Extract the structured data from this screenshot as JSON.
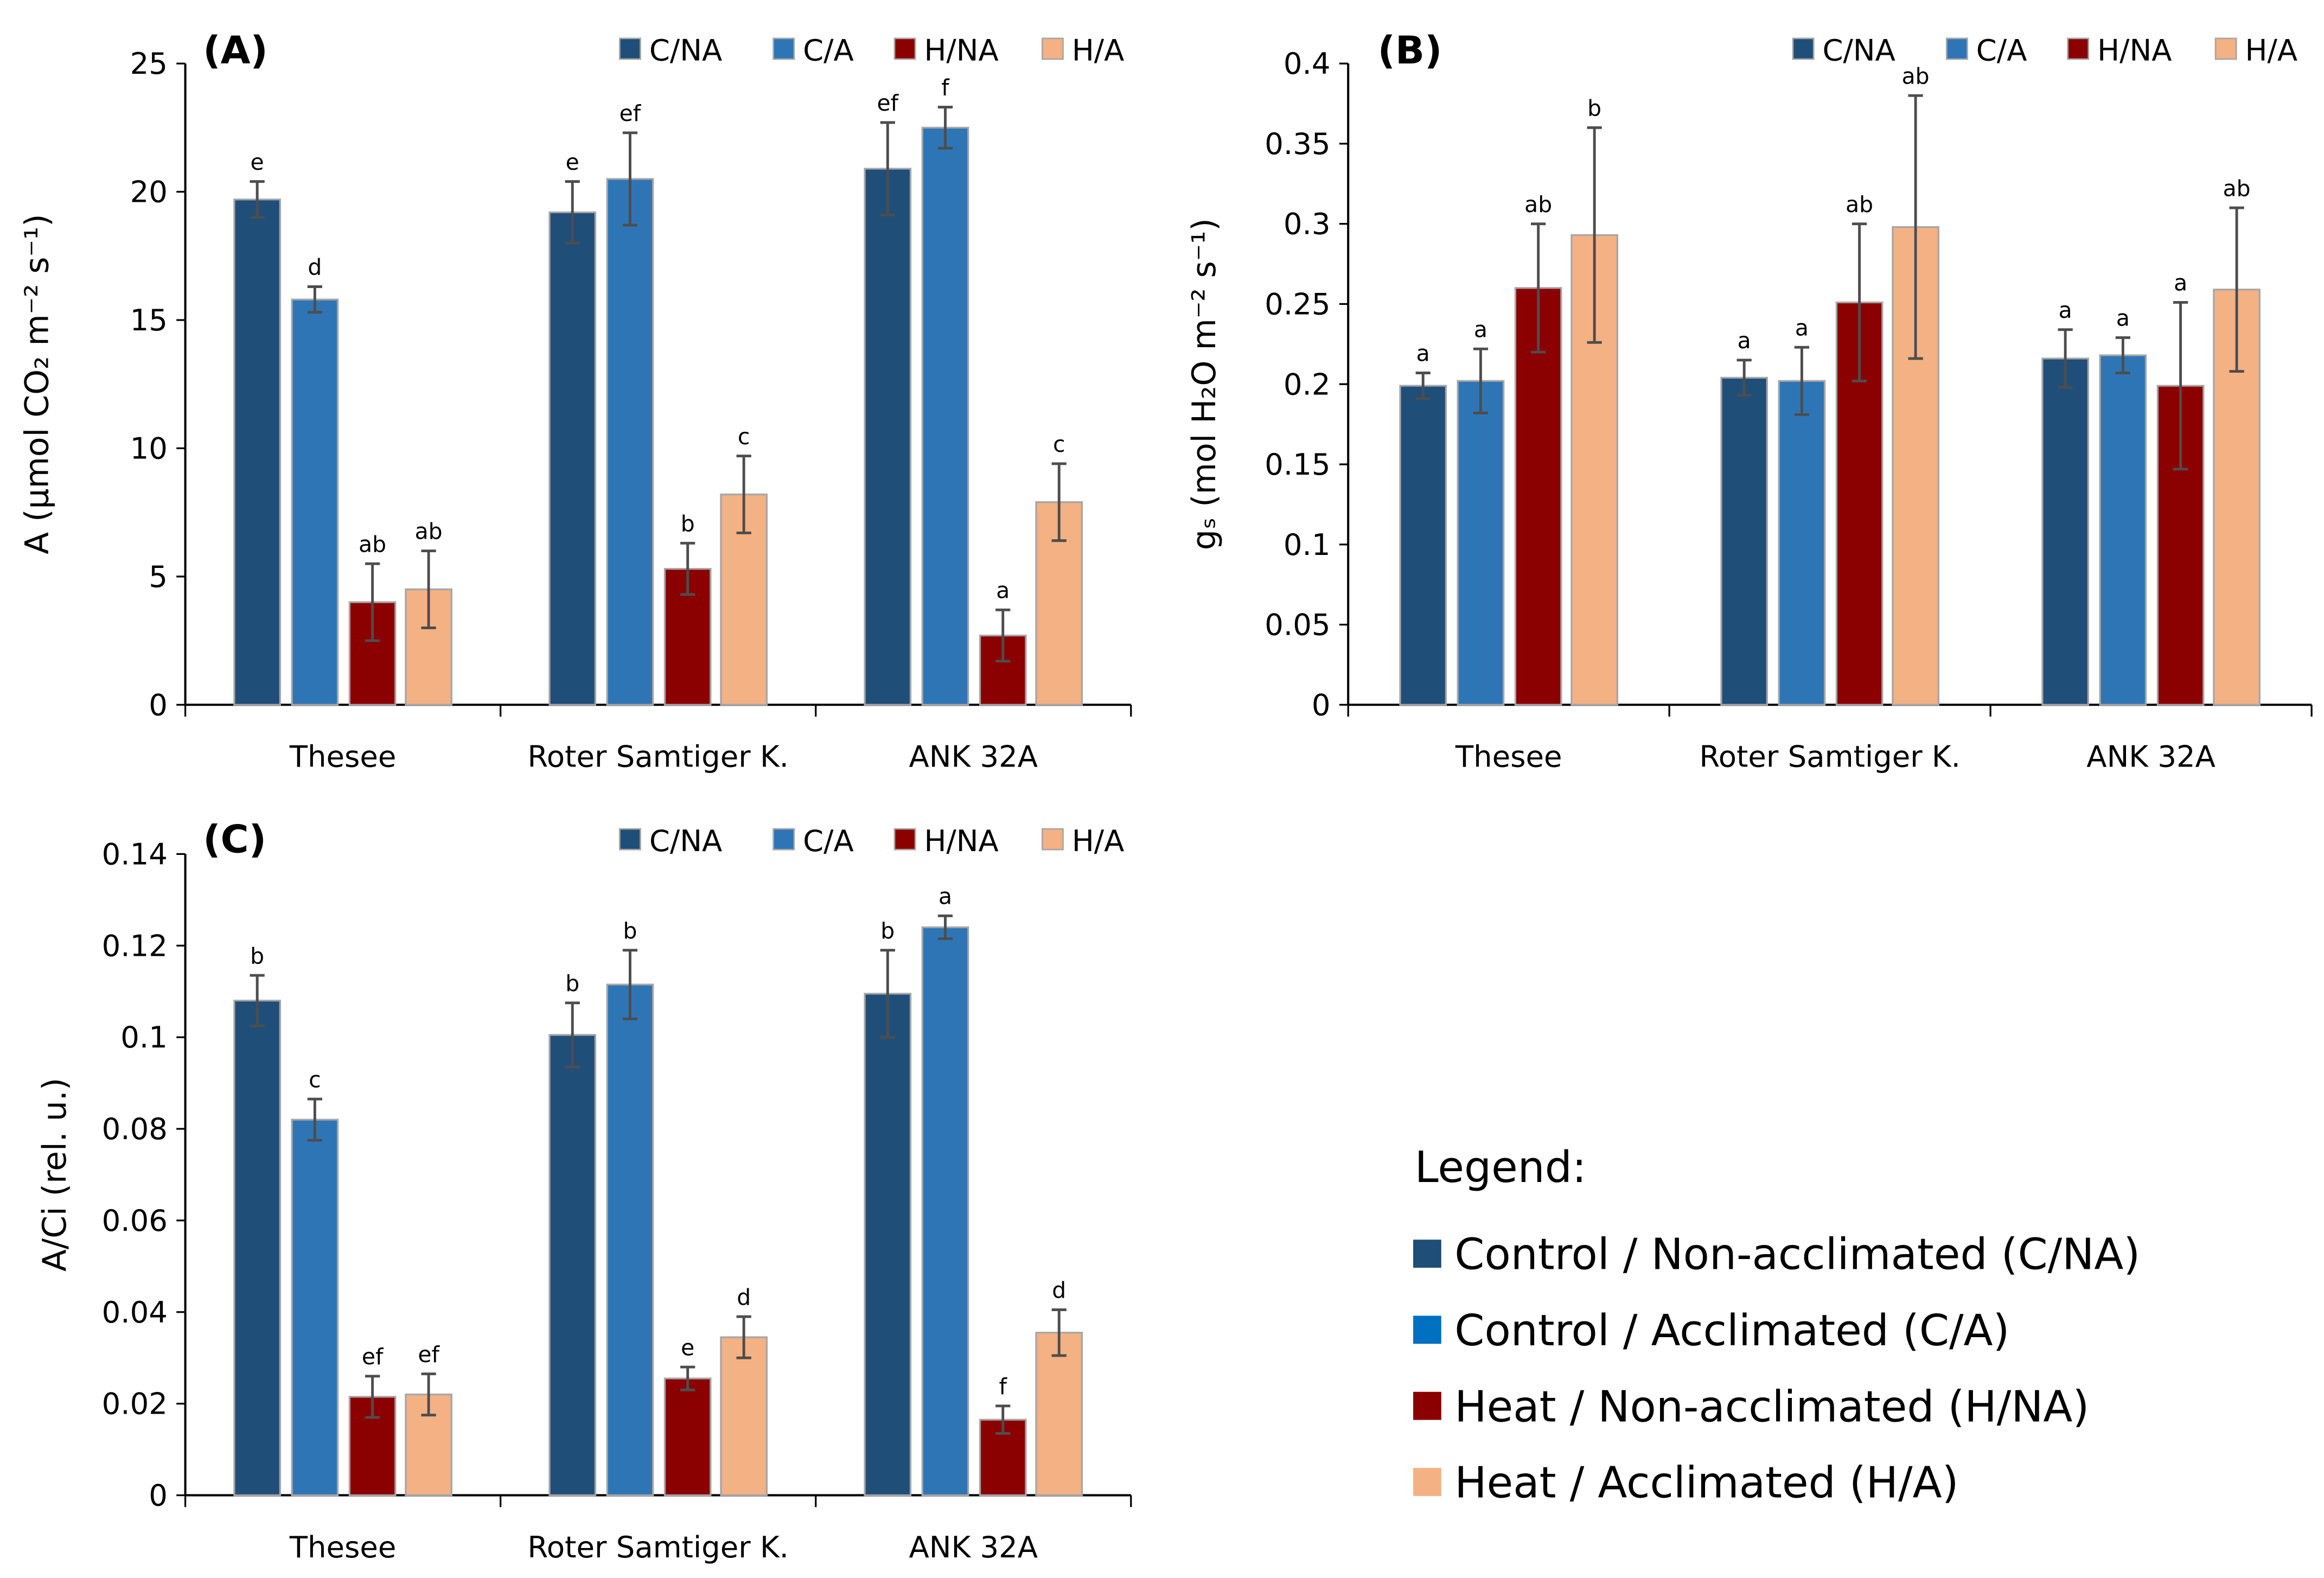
{
  "colors": {
    "C/NA": "#1F4E79",
    "C/A": "#2E75B6",
    "H/NA": "#8B0000",
    "H/A": "#F4B183",
    "legend_C/A": "#0070C0",
    "axis": "#808080",
    "error": "#4d4d4d"
  },
  "legend": {
    "title": "Legend:",
    "items": [
      {
        "key": "C/NA",
        "label": "Control / Non-acclimated (C/NA)"
      },
      {
        "key": "C/A",
        "label": "Control / Acclimated (C/A)"
      },
      {
        "key": "H/NA",
        "label": "Heat / Non-acclimated (H/NA)"
      },
      {
        "key": "H/A",
        "label": "Heat / Acclimated (H/A)"
      }
    ]
  },
  "chart_data": [
    {
      "type": "bar",
      "panel": "(A)",
      "ylabel": "A (µmol CO₂ m⁻² s⁻¹)",
      "ylim": [
        0,
        25
      ],
      "yticks": [
        0,
        5,
        10,
        15,
        20,
        25
      ],
      "categories": [
        "Thesee",
        "Roter Samtiger K.",
        "ANK 32A"
      ],
      "legend_position": "top-right",
      "series": [
        {
          "name": "C/NA",
          "values": [
            19.7,
            19.2,
            20.9
          ],
          "errors": [
            0.7,
            1.2,
            1.8
          ],
          "letters": [
            "e",
            "e",
            "ef"
          ]
        },
        {
          "name": "C/A",
          "values": [
            15.8,
            20.5,
            22.5
          ],
          "errors": [
            0.5,
            1.8,
            0.8
          ],
          "letters": [
            "d",
            "ef",
            "f"
          ]
        },
        {
          "name": "H/NA",
          "values": [
            4.0,
            5.3,
            2.7
          ],
          "errors": [
            1.5,
            1.0,
            1.0
          ],
          "letters": [
            "ab",
            "b",
            "a"
          ]
        },
        {
          "name": "H/A",
          "values": [
            4.5,
            8.2,
            7.9
          ],
          "errors": [
            1.5,
            1.5,
            1.5
          ],
          "letters": [
            "ab",
            "c",
            "c"
          ]
        }
      ]
    },
    {
      "type": "bar",
      "panel": "(B)",
      "ylabel": "gₛ (mol H₂O m⁻² s⁻¹)",
      "ylim": [
        0,
        0.4
      ],
      "yticks": [
        0,
        0.05,
        0.1,
        0.15,
        0.2,
        0.25,
        0.3,
        0.35,
        0.4
      ],
      "categories": [
        "Thesee",
        "Roter Samtiger K.",
        "ANK 32A"
      ],
      "legend_position": "top-right",
      "series": [
        {
          "name": "C/NA",
          "values": [
            0.199,
            0.204,
            0.216
          ],
          "errors": [
            0.008,
            0.011,
            0.018
          ],
          "letters": [
            "a",
            "a",
            "a"
          ]
        },
        {
          "name": "C/A",
          "values": [
            0.202,
            0.202,
            0.218
          ],
          "errors": [
            0.02,
            0.021,
            0.011
          ],
          "letters": [
            "a",
            "a",
            "a"
          ]
        },
        {
          "name": "H/NA",
          "values": [
            0.26,
            0.251,
            0.199
          ],
          "errors": [
            0.04,
            0.049,
            0.052
          ],
          "letters": [
            "ab",
            "ab",
            "a"
          ]
        },
        {
          "name": "H/A",
          "values": [
            0.293,
            0.298,
            0.259
          ],
          "errors": [
            0.067,
            0.082,
            0.051
          ],
          "letters": [
            "b",
            "ab",
            "ab"
          ]
        }
      ]
    },
    {
      "type": "bar",
      "panel": "(C)",
      "ylabel": "A/Ci (rel. u.)",
      "ylim": [
        0,
        0.14
      ],
      "yticks": [
        0,
        0.02,
        0.04,
        0.06,
        0.08,
        0.1,
        0.12,
        0.14
      ],
      "categories": [
        "Thesee",
        "Roter Samtiger K.",
        "ANK 32A"
      ],
      "legend_position": "top-right",
      "series": [
        {
          "name": "C/NA",
          "values": [
            0.108,
            0.1005,
            0.1095
          ],
          "errors": [
            0.0055,
            0.007,
            0.0095
          ],
          "letters": [
            "b",
            "b",
            "b"
          ]
        },
        {
          "name": "C/A",
          "values": [
            0.082,
            0.1115,
            0.124
          ],
          "errors": [
            0.0045,
            0.0075,
            0.0025
          ],
          "letters": [
            "c",
            "b",
            "a"
          ]
        },
        {
          "name": "H/NA",
          "values": [
            0.0215,
            0.0255,
            0.0165
          ],
          "errors": [
            0.0045,
            0.0025,
            0.003
          ],
          "letters": [
            "ef",
            "e",
            "f"
          ]
        },
        {
          "name": "H/A",
          "values": [
            0.022,
            0.0345,
            0.0355
          ],
          "errors": [
            0.0045,
            0.0045,
            0.005
          ],
          "letters": [
            "ef",
            "d",
            "d"
          ]
        }
      ]
    }
  ]
}
